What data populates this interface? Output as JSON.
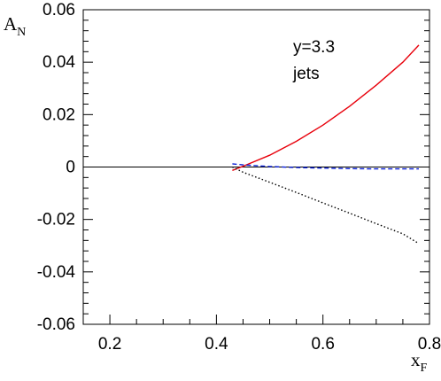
{
  "chart_data": {
    "type": "line",
    "ylabel": {
      "main": "A",
      "sub": "N"
    },
    "xlabel": {
      "main": "x",
      "sub": "F"
    },
    "xlim": [
      0.15,
      0.8
    ],
    "ylim": [
      -0.06,
      0.06
    ],
    "x_ticks": [
      0.2,
      0.4,
      0.6,
      0.8
    ],
    "x_tick_labels": [
      "0.2",
      "0.4",
      "0.6",
      "0.8"
    ],
    "y_ticks": [
      -0.06,
      -0.04,
      -0.02,
      0,
      0.02,
      0.04,
      0.06
    ],
    "y_tick_labels": [
      "-0.06",
      "-0.04",
      "-0.02",
      "0",
      "0.02",
      "0.04",
      "0.06"
    ],
    "annotations": [
      "y=3.3",
      "jets"
    ],
    "series": [
      {
        "style": "solid",
        "color": "#e8000b",
        "x": [
          0.43,
          0.45,
          0.5,
          0.55,
          0.6,
          0.65,
          0.7,
          0.75,
          0.78
        ],
        "y": [
          -0.0013,
          0.0003,
          0.0045,
          0.0098,
          0.016,
          0.0232,
          0.0312,
          0.04,
          0.0465
        ]
      },
      {
        "style": "dashed",
        "color": "#0a1fd6",
        "x": [
          0.43,
          0.45,
          0.5,
          0.55,
          0.6,
          0.65,
          0.7,
          0.75,
          0.78
        ],
        "y": [
          0.0012,
          0.0008,
          0.0002,
          -0.0002,
          -0.0004,
          -0.0006,
          -0.0007,
          -0.0007,
          -0.0007
        ]
      },
      {
        "style": "dotted",
        "color": "#000000",
        "x": [
          0.43,
          0.45,
          0.5,
          0.55,
          0.6,
          0.65,
          0.7,
          0.75,
          0.78
        ],
        "y": [
          0.0,
          -0.002,
          -0.0058,
          -0.0097,
          -0.0137,
          -0.0176,
          -0.0216,
          -0.0255,
          -0.0292
        ]
      }
    ],
    "zero_line": true,
    "grid": false
  }
}
